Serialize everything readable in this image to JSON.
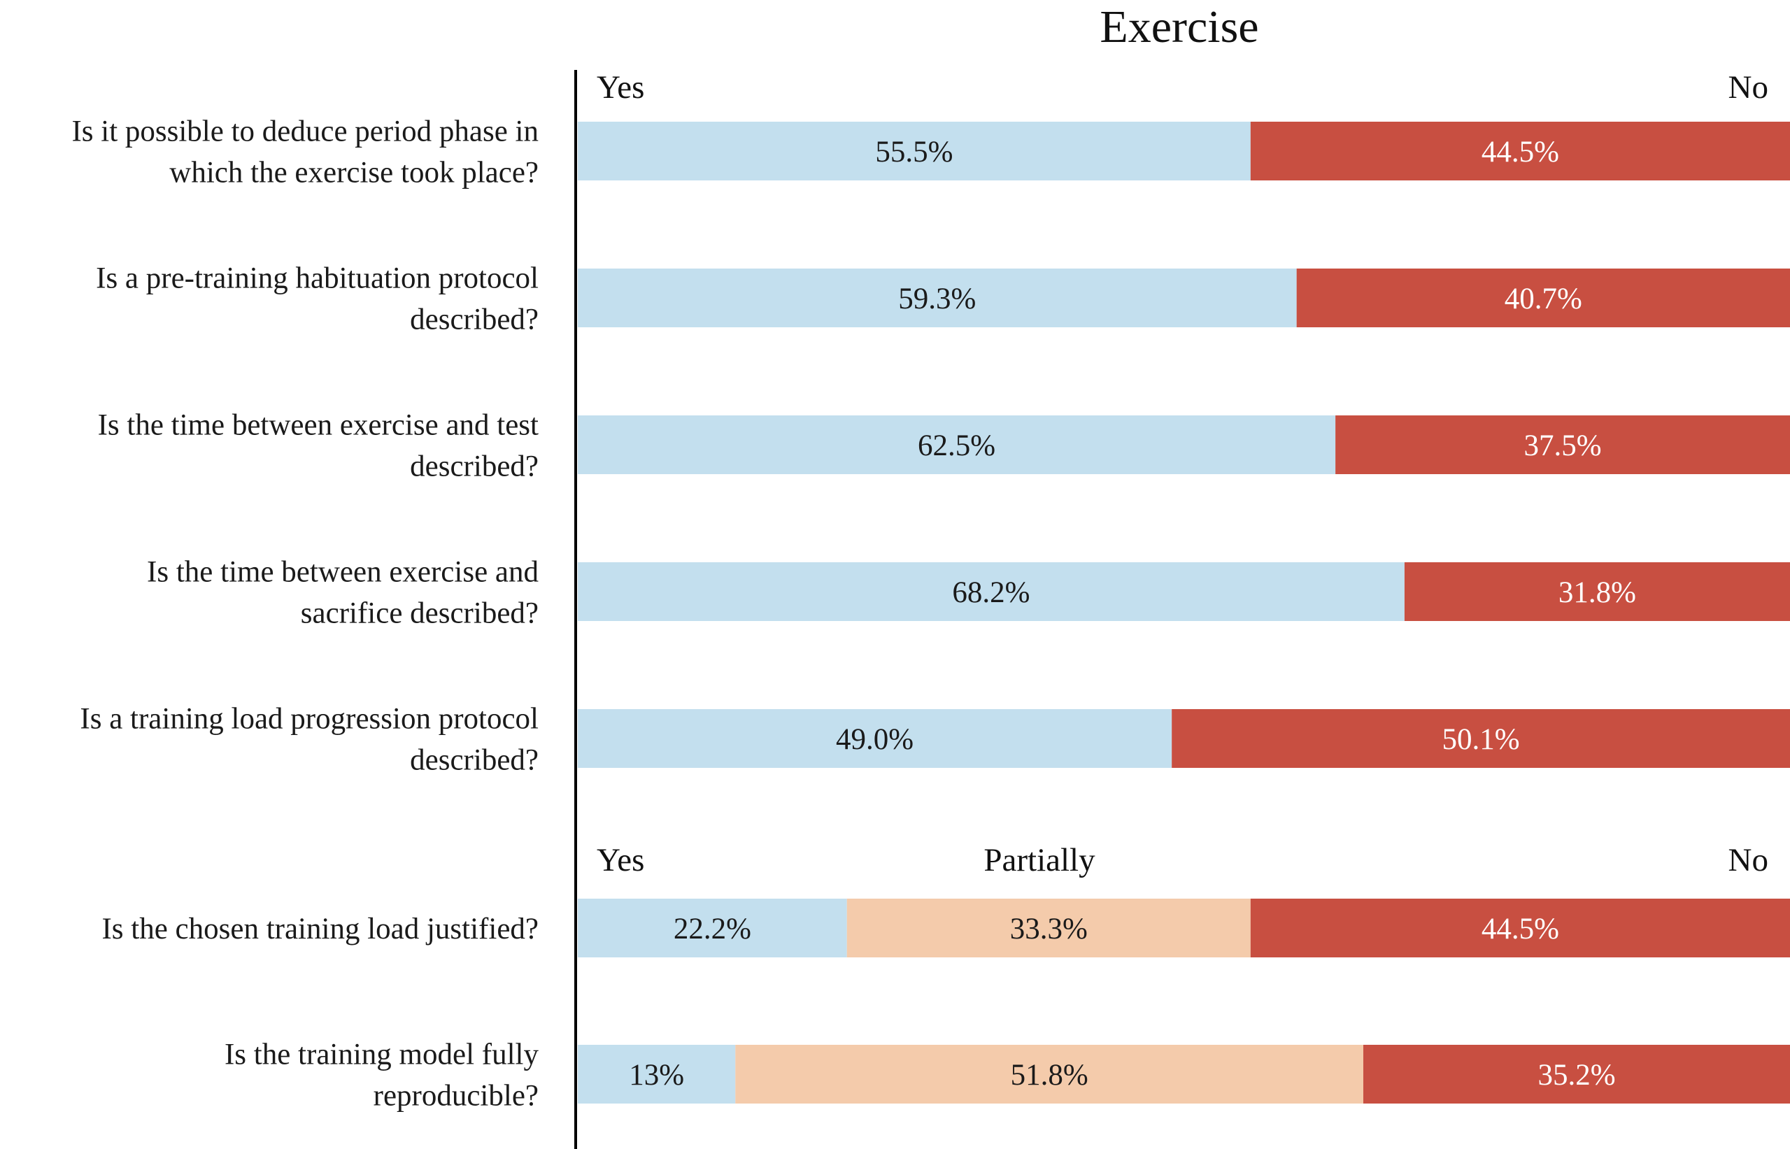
{
  "chart_data": {
    "type": "bar",
    "orientation": "horizontal",
    "stacked": true,
    "title": "Exercise",
    "xlabel": "",
    "ylabel": "",
    "xlim": [
      0,
      100
    ],
    "grid": false,
    "legend": "none",
    "colors": {
      "Yes": "#c3dfee",
      "Partially": "#f4cbab",
      "No": "#c84f41",
      "text_light": "#ffffff",
      "text_dark": "#1a1a1a"
    },
    "groups": [
      {
        "headers": [
          "Yes",
          "No"
        ],
        "header_positions": [
          "left",
          "right"
        ],
        "rows": [
          {
            "question": [
              "Is it possible to deduce period phase in",
              "which the exercise took place?"
            ],
            "series": [
              "Yes",
              "No"
            ],
            "values": [
              55.5,
              44.5
            ],
            "labels": [
              "55.5%",
              "44.5%"
            ]
          },
          {
            "question": [
              "Is a pre-training habituation protocol",
              "described?"
            ],
            "series": [
              "Yes",
              "No"
            ],
            "values": [
              59.3,
              40.7
            ],
            "labels": [
              "59.3%",
              "40.7%"
            ]
          },
          {
            "question": [
              "Is the time between exercise and test",
              "described?"
            ],
            "series": [
              "Yes",
              "No"
            ],
            "values": [
              62.5,
              37.5
            ],
            "labels": [
              "62.5%",
              "37.5%"
            ]
          },
          {
            "question": [
              "Is the time between exercise and",
              "sacrifice described?"
            ],
            "series": [
              "Yes",
              "No"
            ],
            "values": [
              68.2,
              31.8
            ],
            "labels": [
              "68.2%",
              "31.8%"
            ]
          },
          {
            "question": [
              "Is a training load progression protocol",
              "described?"
            ],
            "series": [
              "Yes",
              "No"
            ],
            "values": [
              49.0,
              50.1
            ],
            "labels": [
              "49.0%",
              "50.1%"
            ]
          }
        ]
      },
      {
        "headers": [
          "Yes",
          "Partially",
          "No"
        ],
        "header_positions": [
          "left",
          "center",
          "right"
        ],
        "rows": [
          {
            "question": [
              "Is the chosen training load justified?"
            ],
            "series": [
              "Yes",
              "Partially",
              "No"
            ],
            "values": [
              22.2,
              33.3,
              44.5
            ],
            "labels": [
              "22.2%",
              "33.3%",
              "44.5%"
            ]
          },
          {
            "question": [
              "Is the training model fully",
              "reproducible?"
            ],
            "series": [
              "Yes",
              "Partially",
              "No"
            ],
            "values": [
              13,
              51.8,
              35.2
            ],
            "labels": [
              "13%",
              "51.8%",
              "35.2%"
            ]
          }
        ]
      }
    ]
  }
}
